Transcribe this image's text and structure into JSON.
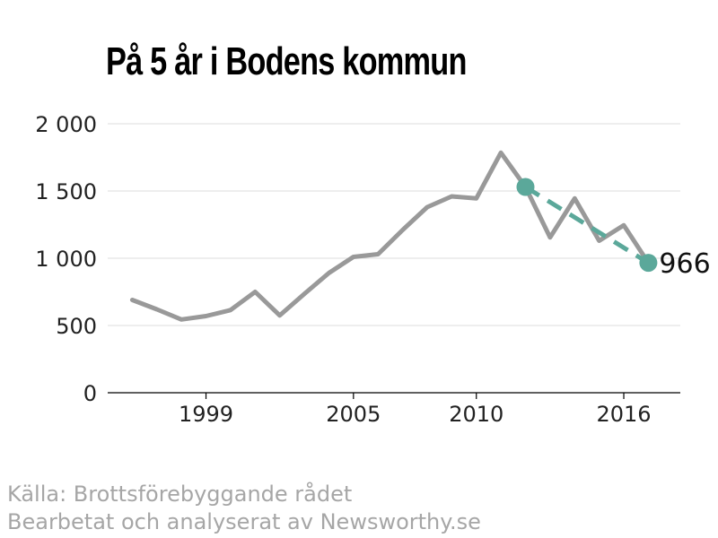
{
  "chart_data": {
    "type": "line",
    "title": "På 5 år i Bodens kommun",
    "xlabel": "",
    "ylabel": "",
    "x": [
      1996,
      1997,
      1998,
      1999,
      2000,
      2001,
      2002,
      2003,
      2004,
      2005,
      2006,
      2007,
      2008,
      2009,
      2010,
      2011,
      2012,
      2013,
      2014,
      2015,
      2016,
      2017
    ],
    "xlim": [
      1995,
      2018.3
    ],
    "ylim": [
      0,
      2000
    ],
    "xticks": [
      1999,
      2005,
      2010,
      2016
    ],
    "yticks": [
      0,
      500,
      1000,
      1500,
      2000
    ],
    "ytick_labels": [
      "0",
      "500",
      "1 000",
      "1 500",
      "2 000"
    ],
    "grid": "horizontal",
    "series": [
      {
        "values": [
          690,
          620,
          545,
          570,
          615,
          750,
          575,
          735,
          890,
          1010,
          1030,
          1210,
          1380,
          1460,
          1445,
          1785,
          1530,
          1155,
          1445,
          1130,
          1245,
          966
        ],
        "color": "#999999",
        "style": "solid"
      },
      {
        "x": [
          2012,
          2017
        ],
        "values": [
          1530,
          966
        ],
        "color": "#5ba89a",
        "style": "dashed",
        "markers": true
      }
    ],
    "end_value_label": "966"
  },
  "footer": {
    "source": "Källa: Brottsförebyggande rådet",
    "credit": "Bearbetat och analyserat av Newsworthy.se"
  }
}
